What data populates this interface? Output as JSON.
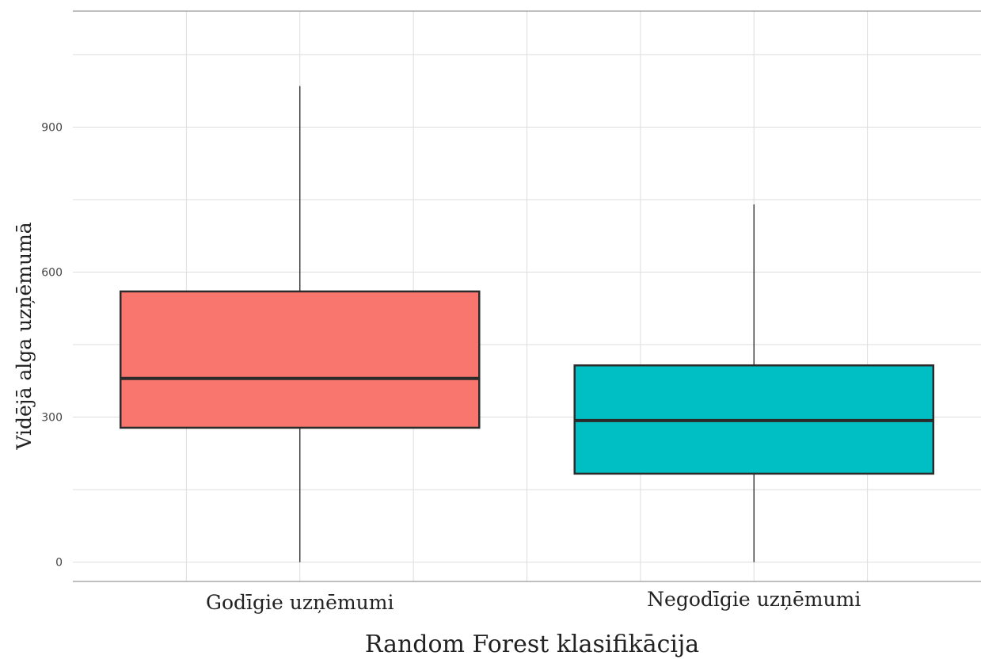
{
  "chart_data": {
    "type": "boxplot",
    "title": "",
    "xlabel": "Random Forest klasifikācija",
    "ylabel": "Vidējā alga uzņēmumā",
    "ylim": [
      -40,
      1140
    ],
    "yticks": [
      0,
      300,
      600,
      900
    ],
    "ytick_labels": [
      "0",
      "300",
      "600",
      "900"
    ],
    "grid": true,
    "categories": [
      "Godīgie uzņēmumi",
      "Negodīgie uzņēmumi"
    ],
    "boxes": [
      {
        "category": "Godīgie uzņēmumi",
        "whisker_low": 0,
        "q1": 278,
        "median": 380,
        "q3": 560,
        "whisker_high": 985,
        "color": "#F8766D"
      },
      {
        "category": "Negodīgie uzņēmumi",
        "whisker_low": 0,
        "q1": 183,
        "median": 293,
        "q3": 407,
        "whisker_high": 740,
        "color": "#00BFC4"
      }
    ]
  }
}
